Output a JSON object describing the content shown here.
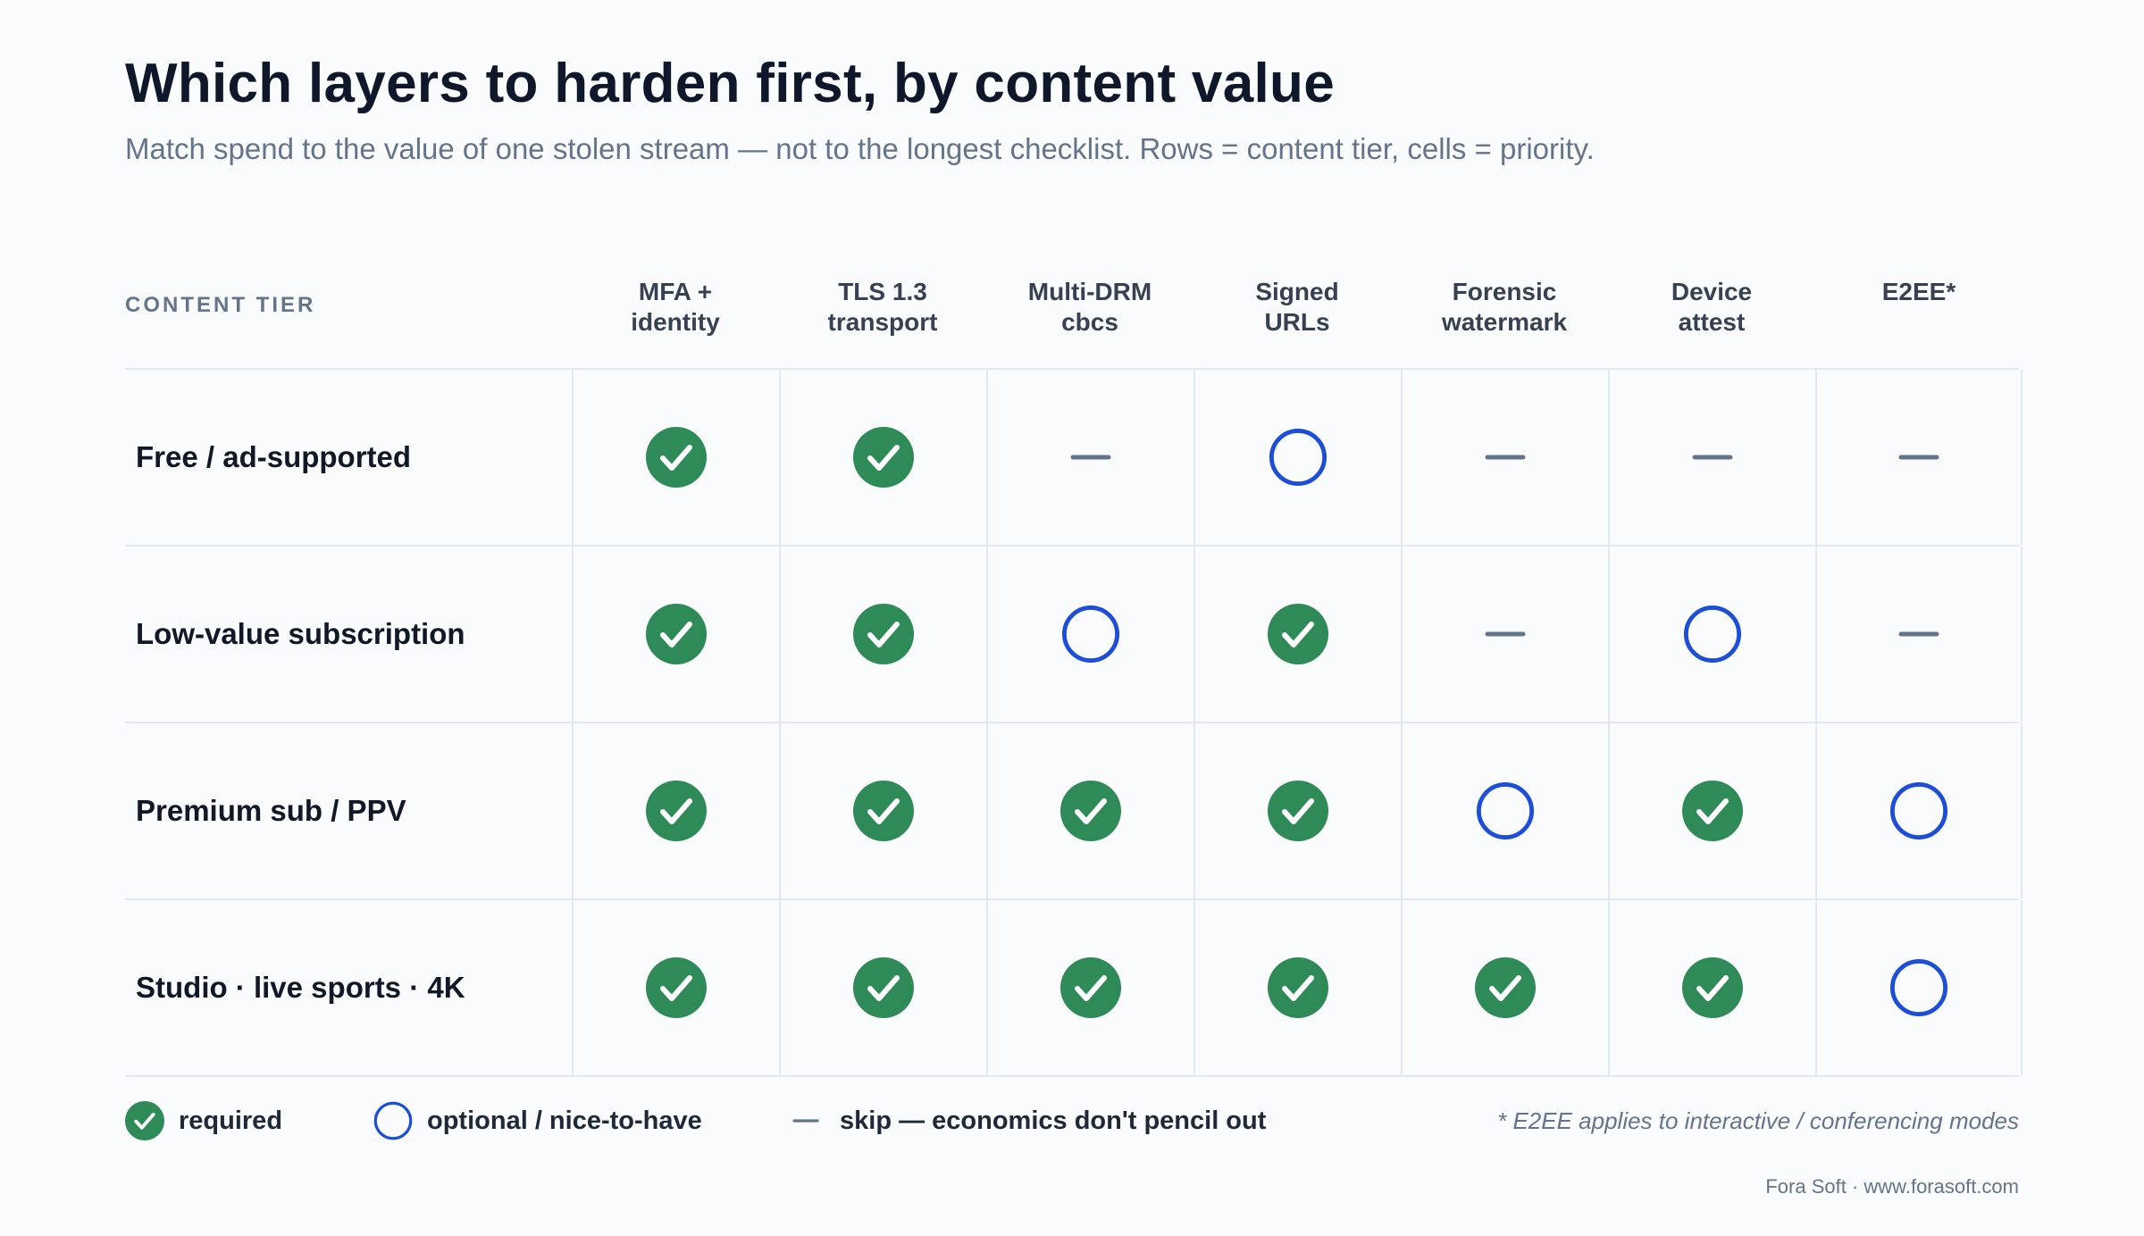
{
  "title": "Which layers to harden first, by content value",
  "subtitle": "Match spend to the value of one stolen stream — not to the longest checklist. Rows = content tier, cells = priority.",
  "matrix": {
    "tier_header": "CONTENT TIER",
    "columns": [
      "MFA +\nidentity",
      "TLS 1.3\ntransport",
      "Multi-DRM\ncbcs",
      "Signed\nURLs",
      "Forensic\nwatermark",
      "Device\nattest",
      "E2EE*"
    ],
    "rows": [
      {
        "label": "Free / ad-supported",
        "cells": [
          "required",
          "required",
          "skip",
          "optional",
          "skip",
          "skip",
          "skip"
        ]
      },
      {
        "label": "Low-value subscription",
        "cells": [
          "required",
          "required",
          "optional",
          "required",
          "skip",
          "optional",
          "skip"
        ]
      },
      {
        "label": "Premium sub / PPV",
        "cells": [
          "required",
          "required",
          "required",
          "required",
          "optional",
          "required",
          "optional"
        ]
      },
      {
        "label": "Studio · live sports · 4K",
        "cells": [
          "required",
          "required",
          "required",
          "required",
          "required",
          "required",
          "optional"
        ]
      }
    ]
  },
  "legend": {
    "required": "required",
    "optional": "optional / nice-to-have",
    "skip": "skip — economics don't pencil out",
    "note": "* E2EE applies to interactive / conferencing modes"
  },
  "footer": "Fora Soft · www.forasoft.com",
  "colors": {
    "required": "#2e8b57",
    "optional": "#1d4ed8",
    "skip": "#64748b"
  }
}
